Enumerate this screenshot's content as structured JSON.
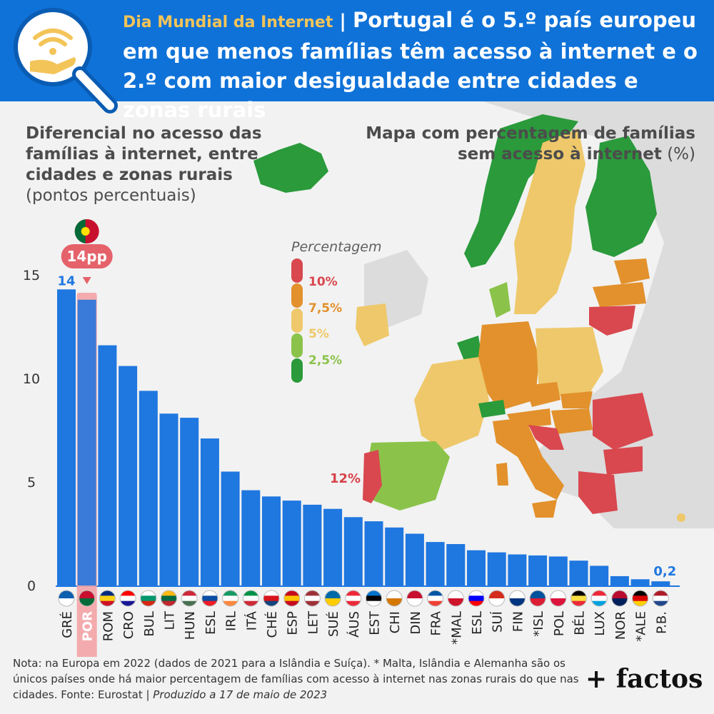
{
  "header": {
    "kicker": "Dia Mundial da Internet",
    "separator": " | ",
    "title": "Portugal é o 5.º país europeu em que menos famílias têm acesso à internet e o 2.º com maior desigualdade entre cidades e zonas rurais"
  },
  "left_panel": {
    "title_bold": "Diferencial no acesso das famílias à internet, entre cidades e zonas rurais",
    "title_unit": "(pontos percentuais)"
  },
  "right_panel": {
    "title_bold": "Mapa com percentagem de famílias sem acesso à internet",
    "title_unit": "(%)"
  },
  "map": {
    "callout_portugal": "12%",
    "legend_title": "Percentagem",
    "legend": [
      {
        "label": "10%",
        "color": "#d9484f"
      },
      {
        "label": "7,5%",
        "color": "#e2912c"
      },
      {
        "label": "5%",
        "color": "#eec86a"
      },
      {
        "label": "2,5%",
        "color": "#8bc34a"
      },
      {
        "label": "",
        "color": "#2a9a3b"
      }
    ]
  },
  "legend_extra": {
    "label_2_5": "2,5%"
  },
  "chart_data": {
    "type": "bar",
    "ylim": [
      0,
      15
    ],
    "yticks": [
      0,
      5,
      10,
      15
    ],
    "highlight_badge": "14pp",
    "first_value_label": "14",
    "last_value_label": "0,2",
    "categories": [
      "GRÉ",
      "POR",
      "ROM",
      "CRO",
      "BUL",
      "LIT",
      "HUN",
      "ESL",
      "IRL",
      "ITÁ",
      "CHÉ",
      "ESP",
      "LET",
      "SUÉ",
      "ÁUS",
      "EST",
      "CHI",
      "DIN",
      "FRA",
      "*MAL",
      "ESL",
      "SUÍ",
      "FIN",
      "*ISL",
      "POL",
      "BÉL",
      "LUX",
      "NOR",
      "*ALE",
      "P.B."
    ],
    "values": [
      14.3,
      13.8,
      11.6,
      10.6,
      9.4,
      8.3,
      8.1,
      7.1,
      5.5,
      4.6,
      4.3,
      4.1,
      3.9,
      3.7,
      3.3,
      3.1,
      2.8,
      2.5,
      2.1,
      2.0,
      1.7,
      1.6,
      1.5,
      1.45,
      1.4,
      1.2,
      0.95,
      0.45,
      0.3,
      0.2
    ],
    "highlight_index": 1,
    "bar_color": "#1f77e0",
    "highlight_color": "#f28b8f"
  },
  "flags": [
    "gr",
    "pt",
    "ro",
    "hr",
    "bg",
    "lt",
    "hu",
    "sk",
    "ie",
    "it",
    "cz",
    "es",
    "lv",
    "se",
    "at",
    "ee",
    "cy",
    "dk",
    "fr",
    "mt",
    "si",
    "ch",
    "fi",
    "is",
    "pl",
    "be",
    "lu",
    "no",
    "de",
    "nl"
  ],
  "footer": {
    "note": "Nota: na Europa em 2022 (dados de 2021 para a Islândia e Suíça). * Malta, Islândia e Alemanha são os únicos países onde há maior percentagem de famílias com acesso à internet nas zonas rurais do que nas cidades. Fonte: Eurostat | ",
    "produced": "Produzido a 17 de maio de 2023",
    "brand": "+ factos"
  }
}
